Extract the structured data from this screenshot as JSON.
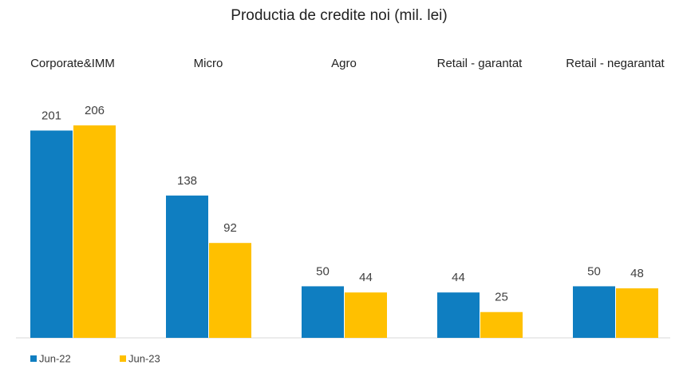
{
  "chart_data": {
    "type": "bar",
    "title": "Productia de credite noi (mil. lei)",
    "categories": [
      "Corporate&IMM",
      "Micro",
      "Agro",
      "Retail - garantat",
      "Retail - negarantat"
    ],
    "series": [
      {
        "name": "Jun-22",
        "color": "#0f7ec1",
        "values": [
          201,
          138,
          50,
          44,
          50
        ]
      },
      {
        "name": "Jun-23",
        "color": "#ffc000",
        "values": [
          206,
          92,
          44,
          25,
          48
        ]
      }
    ],
    "legend": "bottom-left"
  }
}
